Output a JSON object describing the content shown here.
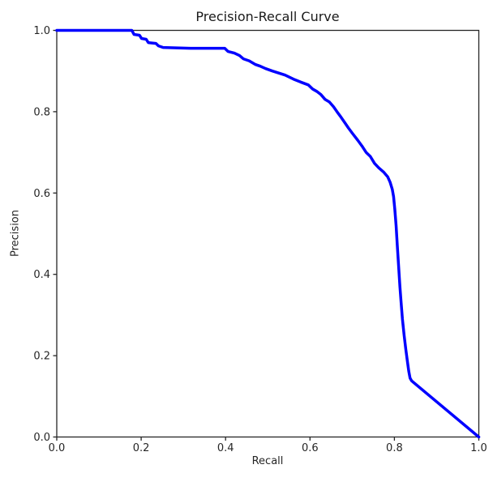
{
  "figure": {
    "background_color": "#ffffff",
    "axis_color": "#262626",
    "text_color": "#1a1a1a"
  },
  "chart_data": {
    "type": "line",
    "title": "Precision-Recall Curve",
    "xlabel": "Recall",
    "ylabel": "Precision",
    "xlim": [
      0.0,
      1.0
    ],
    "ylim": [
      0.0,
      1.0
    ],
    "xticks": [
      0.0,
      0.2,
      0.4,
      0.6,
      0.8,
      1.0
    ],
    "yticks": [
      0.0,
      0.2,
      0.4,
      0.6,
      0.8,
      1.0
    ],
    "xtick_labels": [
      "0.0",
      "0.2",
      "0.4",
      "0.6",
      "0.8",
      "1.0"
    ],
    "ytick_labels": [
      "0.0",
      "0.2",
      "0.4",
      "0.6",
      "0.8",
      "1.0"
    ],
    "grid": false,
    "legend": null,
    "series": [
      {
        "name": "precision-recall",
        "color": "#0000ff",
        "line_width": 3.5,
        "points": [
          [
            0.0,
            1.0
          ],
          [
            0.178,
            1.0
          ],
          [
            0.183,
            0.99
          ],
          [
            0.196,
            0.988
          ],
          [
            0.201,
            0.98
          ],
          [
            0.212,
            0.978
          ],
          [
            0.217,
            0.97
          ],
          [
            0.235,
            0.968
          ],
          [
            0.241,
            0.962
          ],
          [
            0.252,
            0.958
          ],
          [
            0.317,
            0.956
          ],
          [
            0.398,
            0.956
          ],
          [
            0.406,
            0.948
          ],
          [
            0.421,
            0.944
          ],
          [
            0.433,
            0.938
          ],
          [
            0.442,
            0.93
          ],
          [
            0.456,
            0.925
          ],
          [
            0.471,
            0.916
          ],
          [
            0.482,
            0.912
          ],
          [
            0.495,
            0.906
          ],
          [
            0.511,
            0.9
          ],
          [
            0.526,
            0.895
          ],
          [
            0.541,
            0.89
          ],
          [
            0.561,
            0.88
          ],
          [
            0.578,
            0.873
          ],
          [
            0.596,
            0.866
          ],
          [
            0.606,
            0.856
          ],
          [
            0.616,
            0.85
          ],
          [
            0.626,
            0.842
          ],
          [
            0.636,
            0.83
          ],
          [
            0.646,
            0.824
          ],
          [
            0.656,
            0.812
          ],
          [
            0.664,
            0.8
          ],
          [
            0.671,
            0.79
          ],
          [
            0.681,
            0.775
          ],
          [
            0.691,
            0.76
          ],
          [
            0.701,
            0.746
          ],
          [
            0.713,
            0.73
          ],
          [
            0.723,
            0.716
          ],
          [
            0.733,
            0.7
          ],
          [
            0.743,
            0.69
          ],
          [
            0.753,
            0.673
          ],
          [
            0.763,
            0.662
          ],
          [
            0.775,
            0.651
          ],
          [
            0.784,
            0.64
          ],
          [
            0.79,
            0.626
          ],
          [
            0.795,
            0.609
          ],
          [
            0.798,
            0.591
          ],
          [
            0.801,
            0.56
          ],
          [
            0.804,
            0.52
          ],
          [
            0.807,
            0.47
          ],
          [
            0.81,
            0.42
          ],
          [
            0.813,
            0.37
          ],
          [
            0.816,
            0.33
          ],
          [
            0.819,
            0.29
          ],
          [
            0.823,
            0.25
          ],
          [
            0.827,
            0.215
          ],
          [
            0.831,
            0.185
          ],
          [
            0.834,
            0.162
          ],
          [
            0.837,
            0.145
          ],
          [
            0.841,
            0.138
          ],
          [
            1.0,
            0.0
          ]
        ]
      }
    ]
  }
}
